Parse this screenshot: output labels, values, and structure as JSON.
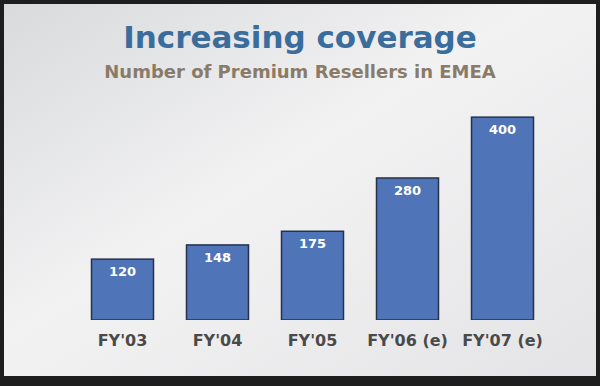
{
  "chart_data": {
    "type": "bar",
    "title": "Increasing coverage",
    "subtitle": "Number of Premium Resellers in EMEA",
    "categories": [
      "FY'03",
      "FY'04",
      "FY'05",
      "FY'06 (e)",
      "FY'07 (e)"
    ],
    "values": [
      120,
      148,
      175,
      280,
      400
    ],
    "color": "#4f74b8",
    "ylim": [
      0,
      420
    ],
    "data_labels": true,
    "tick_labels": "x",
    "grid": false
  }
}
